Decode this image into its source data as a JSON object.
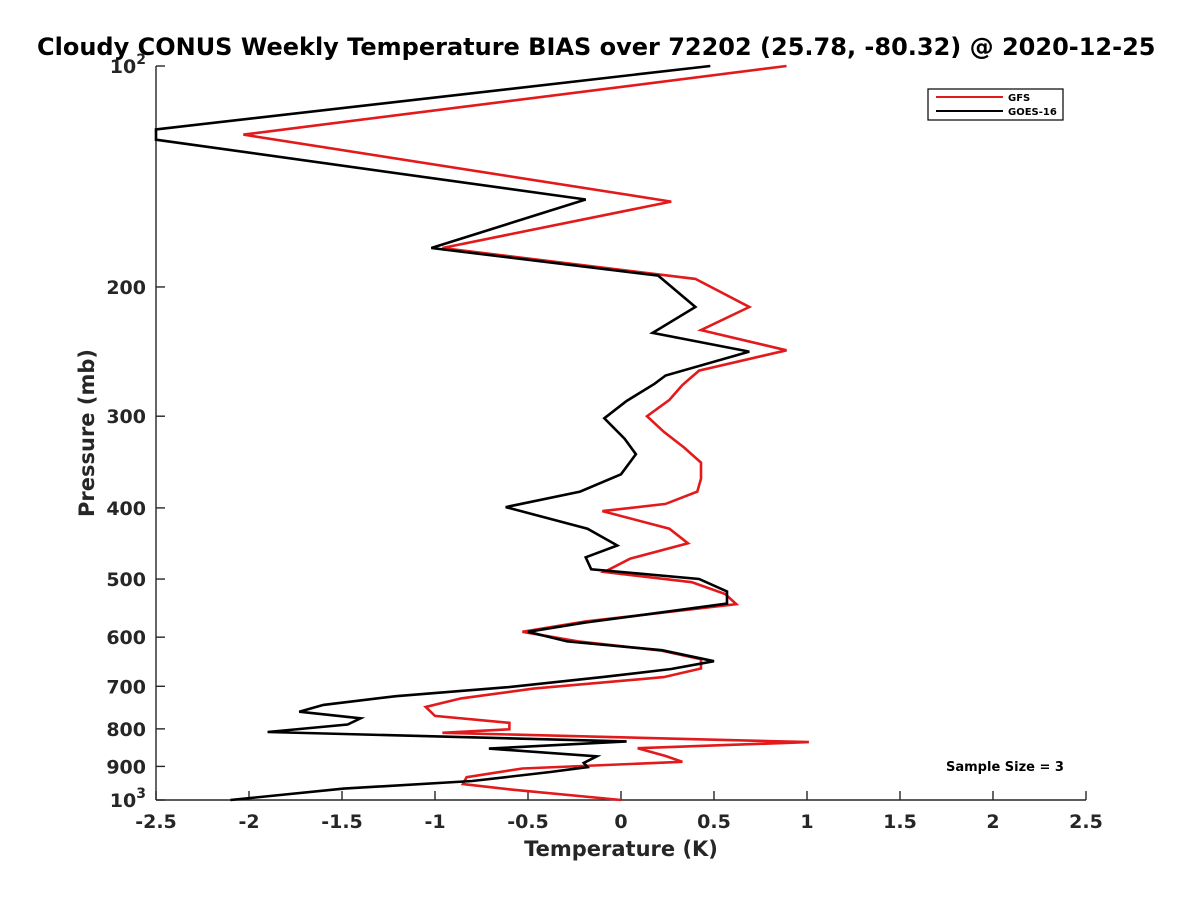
{
  "chart_data": {
    "type": "line",
    "title": "Cloudy CONUS Weekly Temperature BIAS over 72202 (25.78, -80.32) @ 2020-12-25",
    "xlabel": "Temperature (K)",
    "ylabel": "Pressure (mb)",
    "xlim": [
      -2.5,
      2.5
    ],
    "ylim": [
      100,
      1000
    ],
    "yscale": "log",
    "y_reversed": true,
    "x_ticks": [
      "-2.5",
      "-2",
      "-1.5",
      "-1",
      "-0.5",
      "0",
      "0.5",
      "1",
      "1.5",
      "2",
      "2.5"
    ],
    "y_ticks": [
      {
        "value": 100,
        "base": "10",
        "exp": "2"
      },
      {
        "value": 200,
        "label": "200"
      },
      {
        "value": 300,
        "label": "300"
      },
      {
        "value": 400,
        "label": "400"
      },
      {
        "value": 500,
        "label": "500"
      },
      {
        "value": 600,
        "label": "600"
      },
      {
        "value": 700,
        "label": "700"
      },
      {
        "value": 800,
        "label": "800"
      },
      {
        "value": 900,
        "label": "900"
      },
      {
        "value": 1000,
        "base": "10",
        "exp": "3"
      }
    ],
    "grid": false,
    "legend_position": "top-right",
    "annotation": "Sample Size = 3",
    "series": [
      {
        "name": "GFS",
        "color": "#e31a1c",
        "points": [
          [
            0.89,
            100
          ],
          [
            -2.03,
            124
          ],
          [
            0.27,
            153
          ],
          [
            -0.96,
            177
          ],
          [
            0.4,
            195
          ],
          [
            0.69,
            213
          ],
          [
            0.43,
            229
          ],
          [
            0.89,
            244
          ],
          [
            0.42,
            260
          ],
          [
            0.33,
            272
          ],
          [
            0.26,
            285
          ],
          [
            0.14,
            300
          ],
          [
            0.23,
            315
          ],
          [
            0.34,
            331
          ],
          [
            0.43,
            347
          ],
          [
            0.43,
            365
          ],
          [
            0.41,
            380
          ],
          [
            0.24,
            395
          ],
          [
            -0.1,
            404
          ],
          [
            0.26,
            427
          ],
          [
            0.36,
            447
          ],
          [
            0.05,
            469
          ],
          [
            -0.09,
            489
          ],
          [
            0.38,
            505
          ],
          [
            0.56,
            524
          ],
          [
            0.62,
            541
          ],
          [
            -0.19,
            571
          ],
          [
            -0.53,
            590
          ],
          [
            -0.23,
            608
          ],
          [
            0.22,
            626
          ],
          [
            0.43,
            643
          ],
          [
            0.43,
            662
          ],
          [
            0.23,
            680
          ],
          [
            -0.47,
            705
          ],
          [
            -0.86,
            727
          ],
          [
            -1.05,
            747
          ],
          [
            -1.0,
            768
          ],
          [
            -0.6,
            785
          ],
          [
            -0.6,
            801
          ],
          [
            -0.96,
            810
          ],
          [
            1.01,
            834
          ],
          [
            0.09,
            850
          ],
          [
            0.24,
            871
          ],
          [
            0.33,
            887
          ],
          [
            -0.53,
            906
          ],
          [
            -0.83,
            931
          ],
          [
            -0.85,
            951
          ],
          [
            -0.59,
            968
          ],
          [
            0.0,
            1000
          ]
        ]
      },
      {
        "name": "GOES-16",
        "color": "#000000",
        "points": [
          [
            0.48,
            100
          ],
          [
            -2.5,
            122
          ],
          [
            -2.5,
            126
          ],
          [
            -0.19,
            152
          ],
          [
            -1.02,
            177
          ],
          [
            0.2,
            193
          ],
          [
            0.4,
            213
          ],
          [
            0.17,
            231
          ],
          [
            0.69,
            245
          ],
          [
            0.24,
            264
          ],
          [
            0.18,
            271
          ],
          [
            0.03,
            286
          ],
          [
            -0.09,
            302
          ],
          [
            0.02,
            322
          ],
          [
            0.08,
            338
          ],
          [
            0.0,
            360
          ],
          [
            -0.22,
            380
          ],
          [
            -0.62,
            399
          ],
          [
            -0.18,
            427
          ],
          [
            -0.02,
            450
          ],
          [
            -0.19,
            467
          ],
          [
            -0.16,
            485
          ],
          [
            0.42,
            500
          ],
          [
            0.57,
            520
          ],
          [
            0.57,
            540
          ],
          [
            -0.19,
            573
          ],
          [
            -0.5,
            590
          ],
          [
            -0.29,
            608
          ],
          [
            0.22,
            625
          ],
          [
            0.5,
            647
          ],
          [
            0.27,
            663
          ],
          [
            -0.1,
            680
          ],
          [
            -0.61,
            702
          ],
          [
            -1.21,
            722
          ],
          [
            -1.6,
            742
          ],
          [
            -1.73,
            758
          ],
          [
            -1.4,
            774
          ],
          [
            -1.47,
            789
          ],
          [
            -1.9,
            808
          ],
          [
            0.03,
            832
          ],
          [
            -0.71,
            851
          ],
          [
            -0.13,
            872
          ],
          [
            -0.2,
            890
          ],
          [
            -0.18,
            902
          ],
          [
            -0.38,
            916
          ],
          [
            -0.8,
            942
          ],
          [
            -1.49,
            965
          ],
          [
            -2.1,
            1000
          ]
        ]
      }
    ]
  }
}
